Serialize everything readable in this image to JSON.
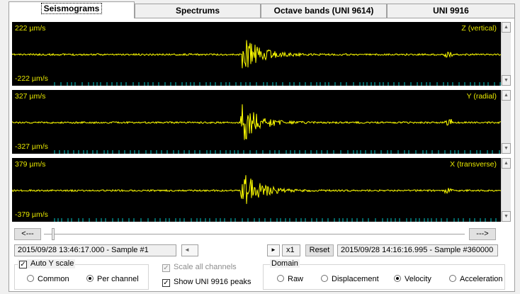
{
  "tabs": [
    {
      "label": "Seismograms",
      "active": true
    },
    {
      "label": "Spectrums",
      "active": false
    },
    {
      "label": "Octave bands (UNI 9614)",
      "active": false
    },
    {
      "label": "UNI 9916",
      "active": false
    }
  ],
  "channels": [
    {
      "top_value": "222 µm/s",
      "bottom_value": "-222 µm/s",
      "name": "Z (vertical)"
    },
    {
      "top_value": "327 µm/s",
      "bottom_value": "-327 µm/s",
      "name": "Y (radial)"
    },
    {
      "top_value": "379 µm/s",
      "bottom_value": "-379 µm/s",
      "name": "X (transverse)"
    }
  ],
  "colors": {
    "trace": "#ffff00",
    "plot_bg": "#000000",
    "peak_marks": "#00c8c8"
  },
  "navigation": {
    "back_label": "<---",
    "forward_label": "--->",
    "start_time": "2015/09/28 13:46:17.000 - Sample #1",
    "end_time": "2015/09/28 14:16:16.995 - Sample #360000",
    "zoom_label": "x1",
    "reset_label": "Reset"
  },
  "auto_y": {
    "label": "Auto Y scale",
    "checked": true,
    "options": [
      {
        "label": "Common",
        "selected": false
      },
      {
        "label": "Per channel",
        "selected": true
      }
    ]
  },
  "scale_all": {
    "label": "Scale all channels",
    "checked": true,
    "enabled": false
  },
  "show_peaks": {
    "label": "Show UNI 9916 peaks",
    "checked": true
  },
  "domain": {
    "title": "Domain",
    "options": [
      {
        "label": "Raw",
        "selected": false
      },
      {
        "label": "Displacement",
        "selected": false
      },
      {
        "label": "Velocity",
        "selected": true
      },
      {
        "label": "Acceleration",
        "selected": false
      }
    ]
  }
}
